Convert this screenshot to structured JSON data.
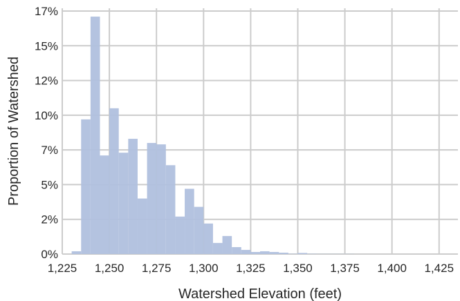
{
  "chart_data": {
    "type": "bar",
    "title": "",
    "xlabel": "Watershed Elevation (feet)",
    "ylabel": "Proportion of Watershed",
    "xlim": [
      1225,
      1435
    ],
    "ylim": [
      0,
      0.177
    ],
    "grid": true,
    "x_ticks": [
      1225,
      1250,
      1275,
      1300,
      1325,
      1350,
      1375,
      1400,
      1425
    ],
    "x_tick_labels": [
      "1,225",
      "1,250",
      "1,275",
      "1,300",
      "1,325",
      "1,350",
      "1,375",
      "1,400",
      "1,425"
    ],
    "y_ticks": [
      0,
      0.025,
      0.05,
      0.075,
      0.1,
      0.125,
      0.15,
      0.175
    ],
    "y_tick_labels": [
      "0%",
      "2%",
      "5%",
      "7%",
      "10%",
      "12%",
      "15%",
      "17%"
    ],
    "bar_color": "#b0c0de",
    "bin_width": 5,
    "bins": [
      {
        "x": 1230,
        "value": 0.002
      },
      {
        "x": 1235,
        "value": 0.097
      },
      {
        "x": 1240,
        "value": 0.171
      },
      {
        "x": 1245,
        "value": 0.071
      },
      {
        "x": 1250,
        "value": 0.105
      },
      {
        "x": 1255,
        "value": 0.073
      },
      {
        "x": 1260,
        "value": 0.083
      },
      {
        "x": 1265,
        "value": 0.04
      },
      {
        "x": 1270,
        "value": 0.08
      },
      {
        "x": 1275,
        "value": 0.079
      },
      {
        "x": 1280,
        "value": 0.064
      },
      {
        "x": 1285,
        "value": 0.027
      },
      {
        "x": 1290,
        "value": 0.047
      },
      {
        "x": 1295,
        "value": 0.034
      },
      {
        "x": 1300,
        "value": 0.022
      },
      {
        "x": 1305,
        "value": 0.008
      },
      {
        "x": 1310,
        "value": 0.013
      },
      {
        "x": 1315,
        "value": 0.005
      },
      {
        "x": 1320,
        "value": 0.003
      },
      {
        "x": 1325,
        "value": 0.0015
      },
      {
        "x": 1330,
        "value": 0.002
      },
      {
        "x": 1335,
        "value": 0.0015
      },
      {
        "x": 1340,
        "value": 0.001
      },
      {
        "x": 1345,
        "value": 0.0002
      },
      {
        "x": 1350,
        "value": 0.0008
      },
      {
        "x": 1355,
        "value": 0.0002
      },
      {
        "x": 1360,
        "value": 0.0001
      },
      {
        "x": 1365,
        "value": 0.0001
      },
      {
        "x": 1370,
        "value": 0.0001
      },
      {
        "x": 1375,
        "value": 0.0001
      }
    ]
  }
}
